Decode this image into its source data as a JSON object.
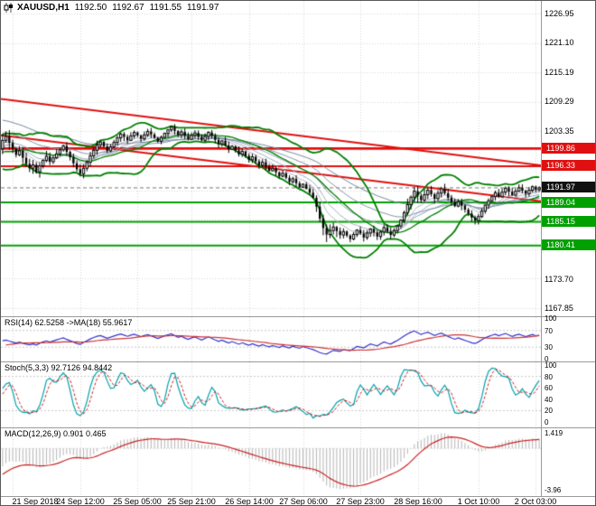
{
  "header": {
    "symbol_info": "XAUUSD,H1",
    "ohlc": {
      "open": "1192.50",
      "high": "1192.67",
      "low": "1191.55",
      "close": "1191.97"
    }
  },
  "colors": {
    "background": "#ffffff",
    "grid": "#d9d9d9",
    "candle": "#000000",
    "bull_fill": "#ffffff",
    "bear_fill": "#000000",
    "bollinger": "#008000",
    "ema_ribbon": [
      "#b9b9c9",
      "#a6b0c2",
      "#95a6b8",
      "#8597ab",
      "#76889e"
    ],
    "trendline": "#e01010",
    "resistance": "#e01010",
    "support": "#00a000",
    "current_line": "#777777",
    "rsi_line": "#3333cc",
    "rsi_ma": "#cc3333",
    "stoch_k": "#00a3ad",
    "stoch_d": "#cc2222",
    "macd_hist": "#b5b5b5",
    "macd_signal": "#cc2222",
    "level_dash": "#c8c8c8"
  },
  "chart_data": {
    "type": "candlestick",
    "title": "XAUUSD,H1",
    "symbol": "XAUUSD",
    "timeframe": "H1",
    "last_ohlc": {
      "open": 1192.5,
      "high": 1192.67,
      "low": 1191.55,
      "close": 1191.97
    },
    "price_axis": {
      "visible_min": 1166.2,
      "visible_max": 1229.5,
      "grid_base": 1167.85,
      "grid_step": 5.907,
      "labels": [
        "1226.95",
        "1221.10",
        "1215.19",
        "1209.29",
        "1203.35",
        "1173.70",
        "1167.85"
      ]
    },
    "time_axis": {
      "labels": [
        "21 Sep 2018",
        "24 Sep 12:00",
        "25 Sep 05:00",
        "25 Sep 21:00",
        "26 Sep 14:00",
        "27 Sep 06:00",
        "27 Sep 23:00",
        "28 Sep 16:00",
        "1 Oct 10:00",
        "2 Oct 03:00"
      ],
      "positions": [
        3,
        23,
        40,
        56,
        73,
        89,
        106,
        123,
        141,
        158
      ]
    },
    "levels": {
      "resistance": [
        "1199.86",
        "1196.33"
      ],
      "current_price": "1191.97",
      "support": [
        "1189.04",
        "1185.15",
        "1180.41"
      ]
    },
    "trendlines": [
      {
        "from_price": 1209.8,
        "to_price": 1196.5
      },
      {
        "from_price": 1202.5,
        "to_price": 1189.3
      }
    ],
    "pre_closes": [
      1214.5,
      1212.8,
      1210.6,
      1211.9,
      1209.2,
      1206.8,
      1208.1,
      1205.4,
      1203.0,
      1204.6,
      1202.1,
      1199.8,
      1201.5,
      1198.9,
      1196.4,
      1198.0,
      1195.6,
      1197.2,
      1199.1,
      1200.8,
      1198.5,
      1196.9,
      1198.6,
      1200.2,
      1201.7,
      1199.9,
      1198.2,
      1199.6,
      1200.9,
      1199.8
    ],
    "closes": [
      1201.5,
      1202.3,
      1201.0,
      1199.8,
      1198.6,
      1199.4,
      1198.0,
      1196.8,
      1195.9,
      1196.6,
      1195.2,
      1196.4,
      1197.5,
      1198.3,
      1197.2,
      1198.0,
      1198.8,
      1199.6,
      1200.4,
      1199.2,
      1198.1,
      1196.9,
      1195.7,
      1194.8,
      1195.9,
      1197.1,
      1198.4,
      1199.5,
      1200.6,
      1201.2,
      1200.3,
      1199.4,
      1200.2,
      1201.1,
      1202.0,
      1202.8,
      1202.2,
      1201.5,
      1202.4,
      1203.1,
      1202.5,
      1201.8,
      1202.6,
      1203.3,
      1202.7,
      1202.0,
      1201.3,
      1202.1,
      1202.9,
      1203.6,
      1204.2,
      1203.4,
      1202.6,
      1203.2,
      1202.4,
      1201.7,
      1202.5,
      1203.0,
      1202.2,
      1201.5,
      1202.3,
      1203.1,
      1202.4,
      1201.6,
      1200.8,
      1201.4,
      1200.5,
      1199.7,
      1200.3,
      1199.5,
      1198.7,
      1199.3,
      1198.4,
      1197.6,
      1198.2,
      1197.3,
      1196.5,
      1197.1,
      1196.2,
      1195.4,
      1195.9,
      1195.1,
      1194.3,
      1194.9,
      1194.0,
      1193.2,
      1193.8,
      1192.9,
      1192.1,
      1192.7,
      1191.8,
      1191.0,
      1190.0,
      1188.2,
      1185.8,
      1183.9,
      1182.6,
      1183.4,
      1184.1,
      1183.3,
      1182.5,
      1183.2,
      1182.4,
      1181.7,
      1182.6,
      1183.5,
      1182.8,
      1182.0,
      1182.9,
      1183.7,
      1183.0,
      1182.2,
      1183.1,
      1184.0,
      1183.2,
      1182.5,
      1183.4,
      1184.3,
      1185.5,
      1187.0,
      1188.6,
      1190.1,
      1191.3,
      1190.4,
      1189.5,
      1190.6,
      1191.5,
      1190.7,
      1189.8,
      1190.9,
      1191.8,
      1190.9,
      1190.0,
      1189.1,
      1188.3,
      1189.2,
      1188.4,
      1187.6,
      1186.8,
      1186.0,
      1185.4,
      1186.2,
      1187.3,
      1188.5,
      1189.4,
      1190.2,
      1191.0,
      1190.2,
      1191.1,
      1191.9,
      1191.2,
      1190.5,
      1191.3,
      1192.0,
      1191.4,
      1190.8,
      1191.5,
      1192.2,
      1191.6,
      1191.97
    ],
    "indicators": {
      "bollinger": {
        "period": 20,
        "deviation": 2
      },
      "ema_ribbon": {
        "periods": [
          8,
          13,
          21,
          34,
          55
        ]
      },
      "rsi": {
        "label": "RSI(14) 62.5258  ->MA(18) 55.9617",
        "period": 14,
        "ma_period": 18,
        "value": 62.5258,
        "ma_value": 55.9617,
        "levels": [
          70,
          30
        ],
        "axis_labels": [
          "100",
          "70",
          "30",
          "0"
        ]
      },
      "stochastic": {
        "label": "Stoch(5,3,3) 92.7126 94.8442",
        "k_period": 5,
        "d_period": 3,
        "slowing": 3,
        "value_k": 92.7126,
        "value_d": 94.8442,
        "levels": [
          80,
          20
        ],
        "axis_labels": [
          "100",
          "80",
          "60",
          "40",
          "20",
          "0"
        ]
      },
      "macd": {
        "label": "MACD(12,26,9) 0.901 0.465",
        "fast": 12,
        "slow": 26,
        "signal": 9,
        "value": 0.901,
        "signal_value": 0.465,
        "range": [
          -4.5,
          1.9
        ],
        "axis_labels": [
          "1.419",
          "-3.96"
        ]
      }
    }
  }
}
